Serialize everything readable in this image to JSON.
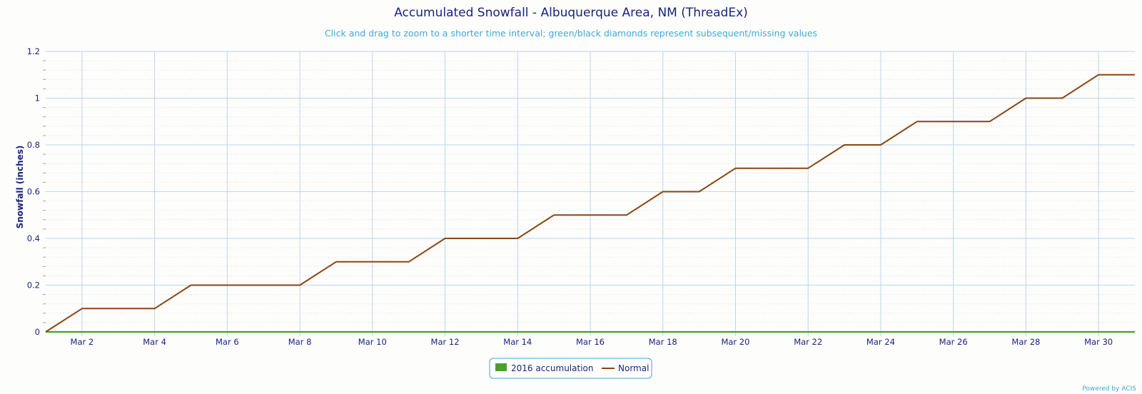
{
  "chart_data": {
    "type": "line",
    "title": "Accumulated Snowfall - Albuquerque Area, NM (ThreadEx)",
    "subtitle": "Click and drag to zoom to a shorter time interval; green/black diamonds represent subsequent/missing values",
    "xlabel": "",
    "ylabel": "Snowfall (inches)",
    "x_range_days": [
      1,
      31
    ],
    "ylim": [
      0,
      1.2
    ],
    "x_ticks": [
      {
        "day": 2,
        "label": "Mar 2"
      },
      {
        "day": 4,
        "label": "Mar 4"
      },
      {
        "day": 6,
        "label": "Mar 6"
      },
      {
        "day": 8,
        "label": "Mar 8"
      },
      {
        "day": 10,
        "label": "Mar 10"
      },
      {
        "day": 12,
        "label": "Mar 12"
      },
      {
        "day": 14,
        "label": "Mar 14"
      },
      {
        "day": 16,
        "label": "Mar 16"
      },
      {
        "day": 18,
        "label": "Mar 18"
      },
      {
        "day": 20,
        "label": "Mar 20"
      },
      {
        "day": 22,
        "label": "Mar 22"
      },
      {
        "day": 24,
        "label": "Mar 24"
      },
      {
        "day": 26,
        "label": "Mar 26"
      },
      {
        "day": 28,
        "label": "Mar 28"
      },
      {
        "day": 30,
        "label": "Mar 30"
      }
    ],
    "y_ticks": [
      {
        "value": 0,
        "label": "0"
      },
      {
        "value": 0.2,
        "label": "0.2"
      },
      {
        "value": 0.4,
        "label": "0.4"
      },
      {
        "value": 0.6,
        "label": "0.6"
      },
      {
        "value": 0.8,
        "label": "0.8"
      },
      {
        "value": 1.0,
        "label": "1"
      },
      {
        "value": 1.2,
        "label": "1.2"
      }
    ],
    "grid": true,
    "legend_position": "bottom-center",
    "series": [
      {
        "name": "2016 accumulation",
        "color": "#4aa02c",
        "x": [
          1,
          31
        ],
        "values": [
          0,
          0
        ]
      },
      {
        "name": "Normal",
        "color": "#8b4513",
        "x": [
          1,
          2,
          3,
          4,
          5,
          6,
          7,
          8,
          9,
          10,
          11,
          12,
          13,
          14,
          15,
          16,
          17,
          18,
          19,
          20,
          21,
          22,
          23,
          24,
          25,
          26,
          27,
          28,
          29,
          30,
          31
        ],
        "values": [
          0,
          0.1,
          0.1,
          0.1,
          0.2,
          0.2,
          0.2,
          0.2,
          0.3,
          0.3,
          0.3,
          0.4,
          0.4,
          0.4,
          0.5,
          0.5,
          0.5,
          0.6,
          0.6,
          0.7,
          0.7,
          0.7,
          0.8,
          0.8,
          0.9,
          0.9,
          0.9,
          1.0,
          1.0,
          1.1,
          1.1
        ]
      }
    ],
    "credit": "Powered by ACIS"
  }
}
